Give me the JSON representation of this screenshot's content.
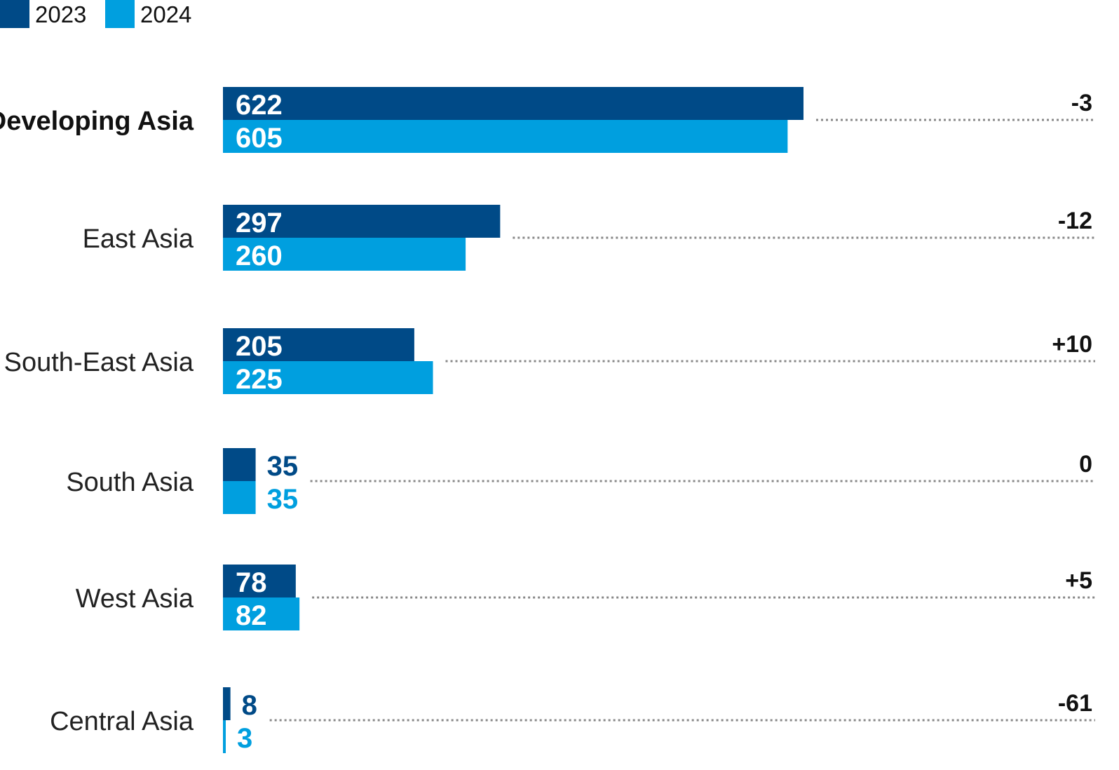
{
  "chart_data": {
    "type": "bar",
    "orientation": "horizontal",
    "categories": [
      "Developing Asia",
      "East Asia",
      "South-East Asia",
      "South Asia",
      "West Asia",
      "Central Asia"
    ],
    "emphasized_category": "Developing Asia",
    "series": [
      {
        "name": "2023",
        "color": "#004a87",
        "values": [
          622,
          297,
          205,
          35,
          78,
          8
        ]
      },
      {
        "name": "2024",
        "color": "#009fdf",
        "values": [
          605,
          260,
          225,
          35,
          82,
          3
        ]
      }
    ],
    "changes": [
      "-3",
      "-12",
      "+10",
      "0",
      "+5",
      "-61"
    ],
    "legend_position": "top-left",
    "title": "",
    "xlabel": "",
    "ylabel": ""
  }
}
